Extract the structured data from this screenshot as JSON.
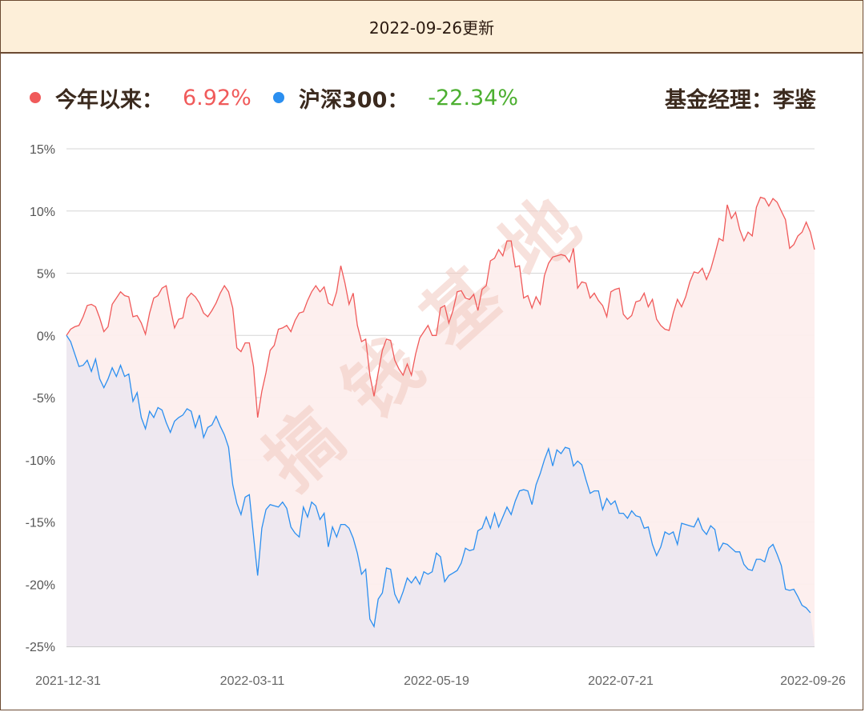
{
  "header": {
    "update_text": "2022-09-26更新"
  },
  "legend": {
    "fund_label": "今年以来：",
    "fund_value": "6.92%",
    "index_label": "沪深300：",
    "index_value": "-22.34%",
    "manager_text": "基金经理：李鉴"
  },
  "watermark": "搞钱基地",
  "colors": {
    "fund": "#f05a5a",
    "index": "#2b8ff0",
    "index_value": "#4caf30",
    "header_bg": "#fdefd9",
    "border": "#6b4a32"
  },
  "chart_data": {
    "type": "line",
    "x_start": "2021-12-31",
    "x_end": "2022-09-26",
    "x_tick_labels": [
      "2021-12-31",
      "2022-03-11",
      "2022-05-19",
      "2022-07-21",
      "2022-09-26"
    ],
    "y_tick_labels": [
      "15%",
      "10%",
      "5%",
      "0%",
      "-5%",
      "-10%",
      "-15%",
      "-20%",
      "-25%"
    ],
    "ylim": [
      -25,
      15
    ],
    "y_unit": "%",
    "grid": true,
    "series": [
      {
        "name": "今年以来",
        "values": [
          0.0,
          0.5,
          0.7,
          0.8,
          1.5,
          2.4,
          2.5,
          2.3,
          1.4,
          0.3,
          0.7,
          2.5,
          3.0,
          3.5,
          3.2,
          3.1,
          1.5,
          1.6,
          1.0,
          0.1,
          1.8,
          3.0,
          3.2,
          3.8,
          4.0,
          2.2,
          0.6,
          1.3,
          1.4,
          3.0,
          3.4,
          3.1,
          2.6,
          1.8,
          1.5,
          2.0,
          2.6,
          3.4,
          4.0,
          3.5,
          2.2,
          -1.0,
          -1.3,
          -0.6,
          -0.6,
          -2.5,
          -6.6,
          -4.5,
          -3.0,
          -1.2,
          -0.8,
          0.5,
          0.6,
          0.8,
          0.3,
          1.2,
          1.8,
          1.9,
          2.8,
          3.5,
          4.0,
          3.5,
          3.9,
          2.6,
          2.4,
          3.5,
          5.6,
          4.2,
          2.5,
          3.4,
          0.8,
          -0.5,
          -0.3,
          -3.2,
          -4.9,
          -3.0,
          -1.2,
          -0.3,
          -0.4,
          -2.0,
          -2.7,
          -3.2,
          -2.3,
          -3.2,
          -1.5,
          -0.2,
          0.3,
          0.8,
          0.0,
          0.0,
          2.2,
          2.4,
          1.0,
          2.0,
          3.5,
          3.6,
          3.0,
          2.9,
          3.3,
          2.0,
          3.7,
          4.0,
          6.0,
          6.2,
          6.9,
          6.4,
          7.6,
          7.6,
          5.5,
          5.6,
          3.0,
          3.2,
          2.2,
          3.1,
          2.5,
          4.8,
          5.8,
          6.3,
          6.4,
          6.5,
          6.4,
          5.9,
          7.0,
          3.8,
          4.3,
          4.2,
          3.0,
          3.4,
          2.8,
          2.4,
          1.5,
          3.5,
          3.7,
          3.8,
          1.7,
          1.3,
          1.6,
          2.7,
          2.8,
          3.4,
          2.3,
          2.9,
          1.3,
          0.8,
          0.5,
          0.4,
          1.8,
          2.9,
          2.3,
          3.1,
          4.3,
          5.1,
          5.0,
          5.4,
          4.5,
          5.3,
          6.5,
          7.8,
          7.6,
          10.5,
          9.4,
          9.9,
          8.5,
          7.6,
          8.3,
          8.0,
          10.3,
          11.1,
          11.0,
          10.4,
          11.0,
          10.7,
          10.0,
          9.3,
          7.0,
          7.3,
          8.0,
          8.3,
          9.1,
          8.3,
          6.9
        ]
      },
      {
        "name": "沪深300",
        "values": [
          0.0,
          -0.5,
          -1.5,
          -2.5,
          -2.4,
          -2.0,
          -2.9,
          -1.9,
          -3.5,
          -4.2,
          -3.5,
          -2.6,
          -3.3,
          -2.4,
          -3.3,
          -3.1,
          -5.3,
          -4.6,
          -6.6,
          -7.5,
          -6.1,
          -6.6,
          -5.8,
          -6.0,
          -7.0,
          -7.8,
          -6.9,
          -6.6,
          -6.4,
          -5.9,
          -6.1,
          -7.4,
          -6.4,
          -8.2,
          -7.4,
          -7.2,
          -6.5,
          -7.3,
          -8.0,
          -9.0,
          -12.0,
          -13.5,
          -14.4,
          -13.0,
          -12.8,
          -16.1,
          -19.3,
          -15.5,
          -14.0,
          -13.6,
          -13.7,
          -13.8,
          -13.4,
          -13.9,
          -15.4,
          -15.9,
          -16.2,
          -13.8,
          -14.6,
          -13.4,
          -13.7,
          -14.8,
          -14.3,
          -17.0,
          -15.4,
          -16.2,
          -15.2,
          -15.2,
          -15.5,
          -16.3,
          -17.5,
          -19.2,
          -18.8,
          -22.8,
          -23.4,
          -21.2,
          -20.7,
          -18.7,
          -18.8,
          -20.8,
          -21.5,
          -20.6,
          -19.5,
          -19.9,
          -19.4,
          -20.0,
          -19.0,
          -19.2,
          -19.0,
          -17.5,
          -17.8,
          -19.8,
          -19.3,
          -19.1,
          -18.9,
          -18.3,
          -17.1,
          -17.3,
          -17.2,
          -15.7,
          -15.5,
          -14.6,
          -15.5,
          -14.3,
          -15.4,
          -14.6,
          -13.8,
          -14.4,
          -13.3,
          -12.5,
          -12.4,
          -12.5,
          -13.6,
          -12.0,
          -11.1,
          -10.0,
          -9.1,
          -10.5,
          -9.2,
          -9.5,
          -9.0,
          -9.1,
          -10.5,
          -10.1,
          -10.4,
          -11.6,
          -12.7,
          -12.5,
          -12.5,
          -14.0,
          -13.1,
          -13.6,
          -13.3,
          -14.3,
          -14.3,
          -14.7,
          -14.1,
          -14.5,
          -14.6,
          -15.5,
          -15.4,
          -16.8,
          -17.7,
          -17.0,
          -15.8,
          -16.0,
          -15.8,
          -16.8,
          -15.1,
          -15.2,
          -15.3,
          -15.4,
          -14.7,
          -15.6,
          -16.0,
          -15.3,
          -15.6,
          -17.3,
          -16.7,
          -16.8,
          -17.1,
          -17.4,
          -17.4,
          -18.4,
          -18.8,
          -18.9,
          -18.0,
          -18.0,
          -18.2,
          -17.1,
          -16.8,
          -17.6,
          -18.5,
          -20.4,
          -20.5,
          -20.4,
          -21.0,
          -21.7,
          -21.9,
          -22.3
        ]
      }
    ]
  }
}
